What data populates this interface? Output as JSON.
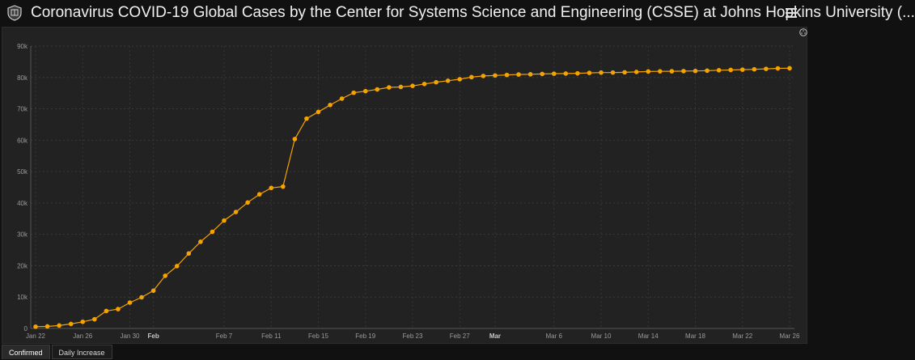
{
  "header": {
    "title": "Coronavirus COVID-19 Global Cases by the Center for Systems Science and Engineering (CSSE) at Johns Hopkins University (...",
    "logo_icon": "university-shield-icon",
    "menu_icon": "hamburger-menu-icon"
  },
  "tabs": [
    {
      "label": "Confirmed",
      "active": true
    },
    {
      "label": "Daily Increase",
      "active": false
    }
  ],
  "panel": {
    "corner_icon": "options-icon"
  },
  "chart_data": {
    "type": "line",
    "title": "",
    "xlabel": "",
    "ylabel": "",
    "ylim": [
      0,
      90000
    ],
    "y_ticks": [
      "0",
      "10k",
      "20k",
      "30k",
      "40k",
      "50k",
      "60k",
      "70k",
      "80k",
      "90k"
    ],
    "x_ticks": [
      {
        "label": "Jan 22",
        "index": 0,
        "bold": false
      },
      {
        "label": "Jan 26",
        "index": 4,
        "bold": false
      },
      {
        "label": "Jan 30",
        "index": 8,
        "bold": false
      },
      {
        "label": "Feb",
        "index": 10,
        "bold": true
      },
      {
        "label": "Feb 7",
        "index": 16,
        "bold": false
      },
      {
        "label": "Feb 11",
        "index": 20,
        "bold": false
      },
      {
        "label": "Feb 15",
        "index": 24,
        "bold": false
      },
      {
        "label": "Feb 19",
        "index": 28,
        "bold": false
      },
      {
        "label": "Feb 23",
        "index": 32,
        "bold": false
      },
      {
        "label": "Feb 27",
        "index": 36,
        "bold": false
      },
      {
        "label": "Mar",
        "index": 39,
        "bold": true
      },
      {
        "label": "Mar 6",
        "index": 44,
        "bold": false
      },
      {
        "label": "Mar 10",
        "index": 48,
        "bold": false
      },
      {
        "label": "Mar 14",
        "index": 52,
        "bold": false
      },
      {
        "label": "Mar 18",
        "index": 56,
        "bold": false
      },
      {
        "label": "Mar 22",
        "index": 60,
        "bold": false
      },
      {
        "label": "Mar 26",
        "index": 64,
        "bold": false
      }
    ],
    "grid": true,
    "line_color": "#f5a300",
    "series": [
      {
        "values": [
          555,
          654,
          941,
          1434,
          2118,
          2927,
          5578,
          6167,
          8235,
          9927,
          12038,
          16787,
          19881,
          23892,
          27636,
          30818,
          34392,
          37121,
          40151,
          42763,
          44803,
          45222,
          60370,
          66887,
          69032,
          71226,
          73260,
          75138,
          75641,
          76199,
          76843,
          76983,
          77316,
          77939,
          78491,
          78963,
          79447,
          80113,
          80483,
          80649,
          80809,
          80948,
          81013,
          81132,
          81203,
          81245,
          81325,
          81461,
          81561,
          81573,
          81650,
          81767,
          81915,
          81958,
          81982,
          82028,
          82078,
          82172,
          82307,
          82401,
          82490,
          82600,
          82750,
          82900,
          82950
        ]
      }
    ]
  }
}
